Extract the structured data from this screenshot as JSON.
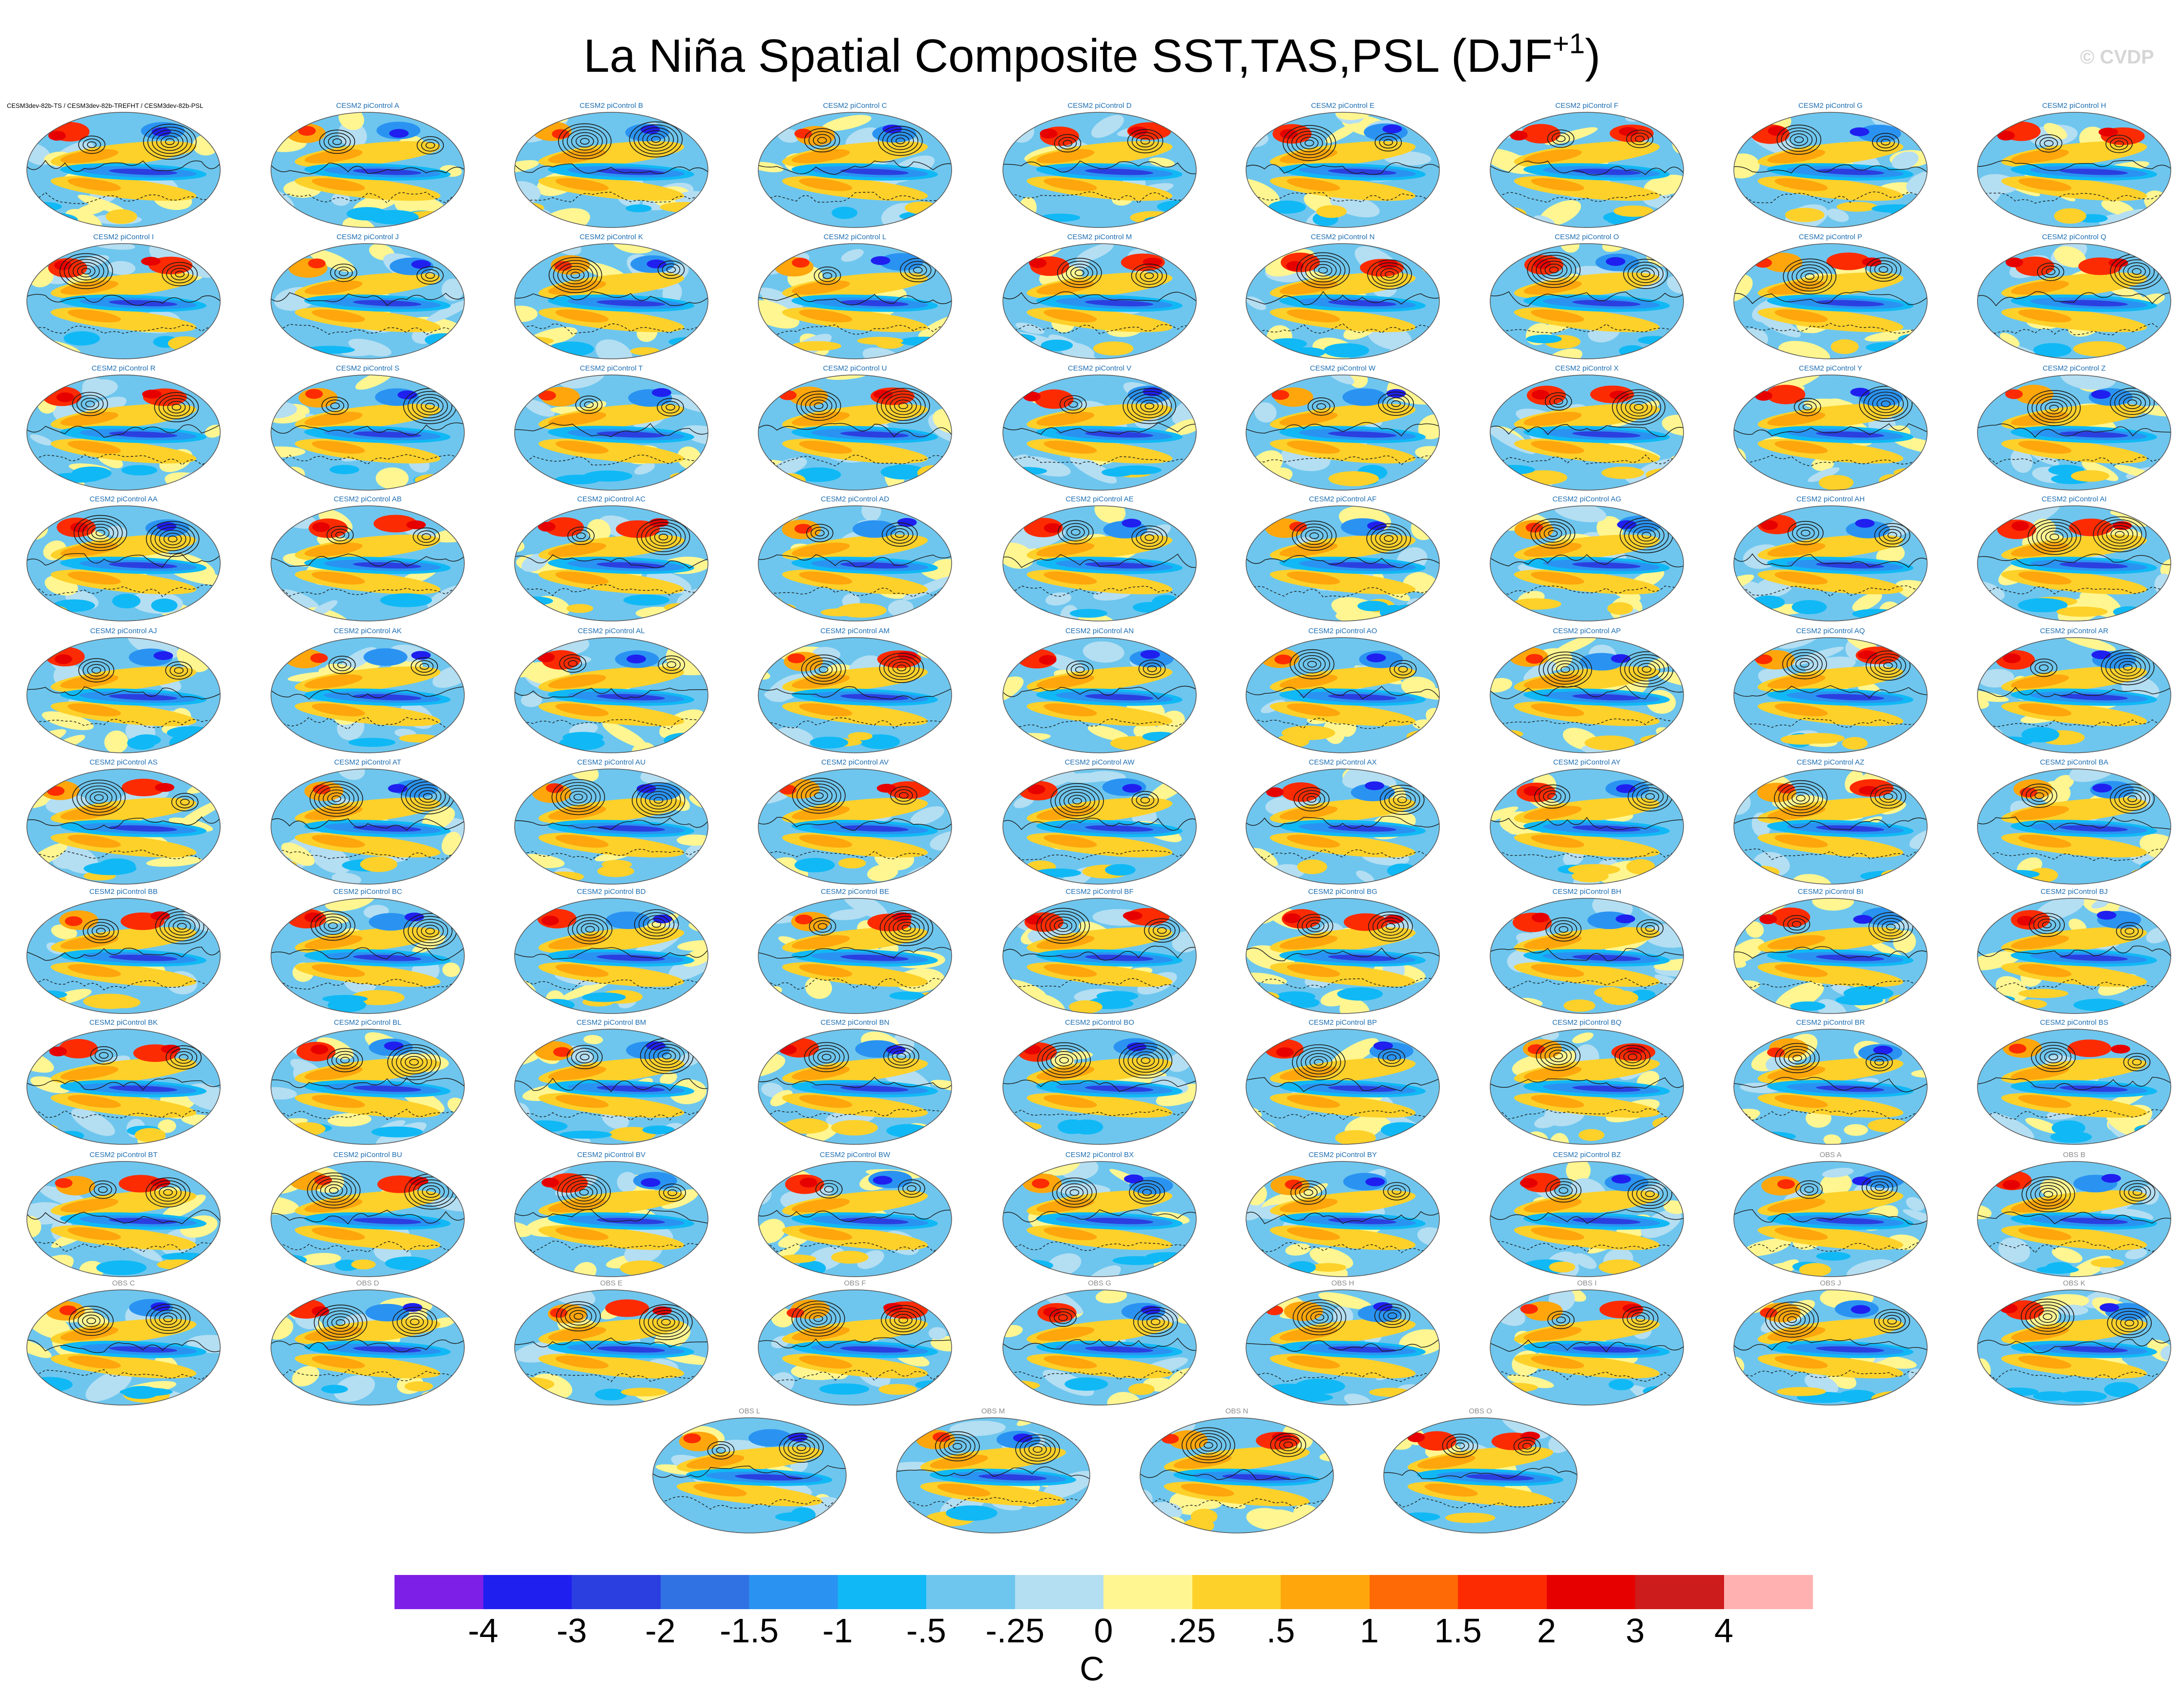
{
  "chart_data": {
    "type": "heatmap",
    "title": "La Niña Spatial Composite SST,TAS,PSL (DJF",
    "title_superscript": "+1",
    "watermark": "© CVDP",
    "first_panel_title": "CESM3dev-82b-TS / CESM3dev-82b-TREFHT / CESM3dev-82b-PSL",
    "panels": [
      "",
      "CESM2 piControl A",
      "CESM2 piControl B",
      "CESM2 piControl C",
      "CESM2 piControl D",
      "CESM2 piControl E",
      "CESM2 piControl F",
      "CESM2 piControl G",
      "CESM2 piControl H",
      "CESM2 piControl I",
      "CESM2 piControl J",
      "CESM2 piControl K",
      "CESM2 piControl L",
      "CESM2 piControl M",
      "CESM2 piControl N",
      "CESM2 piControl O",
      "CESM2 piControl P",
      "CESM2 piControl Q",
      "CESM2 piControl R",
      "CESM2 piControl S",
      "CESM2 piControl T",
      "CESM2 piControl U",
      "CESM2 piControl V",
      "CESM2 piControl W",
      "CESM2 piControl X",
      "CESM2 piControl Y",
      "CESM2 piControl Z",
      "CESM2 piControl AA",
      "CESM2 piControl AB",
      "CESM2 piControl AC",
      "CESM2 piControl AD",
      "CESM2 piControl AE",
      "CESM2 piControl AF",
      "CESM2 piControl AG",
      "CESM2 piControl AH",
      "CESM2 piControl AI",
      "CESM2 piControl AJ",
      "CESM2 piControl AK",
      "CESM2 piControl AL",
      "CESM2 piControl AM",
      "CESM2 piControl AN",
      "CESM2 piControl AO",
      "CESM2 piControl AP",
      "CESM2 piControl AQ",
      "CESM2 piControl AR",
      "CESM2 piControl AS",
      "CESM2 piControl AT",
      "CESM2 piControl AU",
      "CESM2 piControl AV",
      "CESM2 piControl AW",
      "CESM2 piControl AX",
      "CESM2 piControl AY",
      "CESM2 piControl AZ",
      "CESM2 piControl BA",
      "CESM2 piControl BB",
      "CESM2 piControl BC",
      "CESM2 piControl BD",
      "CESM2 piControl BE",
      "CESM2 piControl BF",
      "CESM2 piControl BG",
      "CESM2 piControl BH",
      "CESM2 piControl BI",
      "CESM2 piControl BJ",
      "CESM2 piControl BK",
      "CESM2 piControl BL",
      "CESM2 piControl BM",
      "CESM2 piControl BN",
      "CESM2 piControl BO",
      "CESM2 piControl BP",
      "CESM2 piControl BQ",
      "CESM2 piControl BR",
      "CESM2 piControl BS",
      "CESM2 piControl BT",
      "CESM2 piControl BU",
      "CESM2 piControl BV",
      "CESM2 piControl BW",
      "CESM2 piControl BX",
      "CESM2 piControl BY",
      "CESM2 piControl BZ",
      "OBS A",
      "OBS B",
      "OBS C",
      "OBS D",
      "OBS E",
      "OBS F",
      "OBS G",
      "OBS H",
      "OBS I",
      "OBS J",
      "OBS K",
      "OBS L",
      "OBS M",
      "OBS N",
      "OBS O"
    ],
    "colorbar": {
      "colors": [
        "#7d1fe6",
        "#1f1ff0",
        "#2b3fe0",
        "#3072e3",
        "#2a93f2",
        "#10b9f5",
        "#6ec6ee",
        "#b4def2",
        "#fff691",
        "#fdd12a",
        "#fea60c",
        "#fd6a06",
        "#fd2b02",
        "#e70000",
        "#cd1c1c",
        "#ffb1b1"
      ],
      "ticks": [
        "-4",
        "-3",
        "-2",
        "-1.5",
        "-1",
        "-.5",
        "-.25",
        "0",
        ".25",
        ".5",
        "1",
        "1.5",
        "2",
        "3",
        "4"
      ],
      "units": "C"
    }
  }
}
